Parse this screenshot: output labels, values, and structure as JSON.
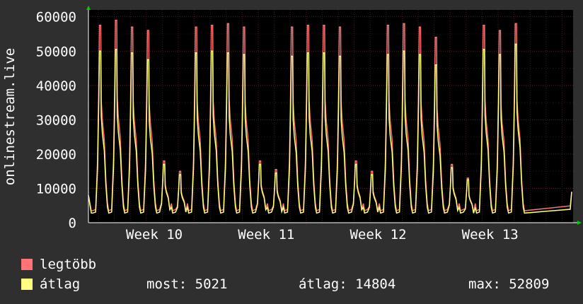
{
  "chart_data": {
    "type": "line",
    "ylabel": "onlinestream.live",
    "ylim": [
      0,
      62000
    ],
    "y_ticks": [
      "0",
      "10000",
      "20000",
      "30000",
      "40000",
      "50000",
      "60000"
    ],
    "x_ticks": [
      "Week 10",
      "Week 11",
      "Week 12",
      "Week 13"
    ],
    "grid": true,
    "series": [
      {
        "name": "legtöbb",
        "color": "#ff7373",
        "daily_peaks": [
          57500,
          59000,
          57000,
          56000,
          18000,
          15000,
          57000,
          57500,
          58000,
          57000,
          18000,
          15500,
          57000,
          57500,
          57500,
          57000,
          18000,
          15000,
          57500,
          58000,
          57000,
          54000,
          17000,
          13000,
          57500,
          56000,
          58000
        ]
      },
      {
        "name": "átlag",
        "color": "#ffff80",
        "daily_peaks": [
          50000,
          50500,
          49500,
          47500,
          17000,
          14000,
          49500,
          50000,
          49500,
          49000,
          17000,
          14500,
          48500,
          49500,
          49500,
          48500,
          17000,
          14000,
          49000,
          50000,
          49000,
          46000,
          16000,
          12500,
          50500,
          49000,
          52000
        ]
      }
    ]
  },
  "legend": {
    "max_label": "legtöbb",
    "avg_label": "átlag",
    "now": "most: 5021",
    "avg": "átlag: 14804",
    "max": "max: 52809"
  }
}
